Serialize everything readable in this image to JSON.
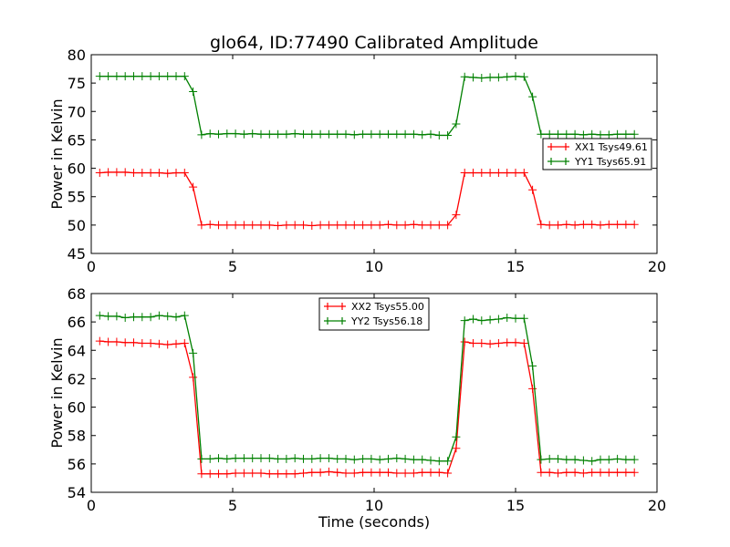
{
  "chart_data": [
    {
      "type": "line",
      "title": "glo64, ID:77490 Calibrated Amplitude",
      "xlabel": "",
      "ylabel": "Power in Kelvin",
      "xlim": [
        0,
        20
      ],
      "ylim": [
        45,
        80
      ],
      "xticks": [
        0,
        5,
        10,
        15,
        20
      ],
      "yticks": [
        45,
        50,
        55,
        60,
        65,
        70,
        75,
        80
      ],
      "legend": "center-right",
      "x_start": 0.3,
      "x_step": 0.3,
      "series": [
        {
          "name": "XX1 Tsys49.61",
          "color": "#ff0000",
          "values": [
            59.2,
            59.3,
            59.3,
            59.3,
            59.2,
            59.2,
            59.2,
            59.2,
            59.1,
            59.2,
            59.2,
            56.7,
            50.0,
            50.1,
            50.0,
            50.0,
            50.0,
            50.0,
            50.0,
            50.0,
            50.0,
            49.9,
            50.0,
            50.0,
            50.0,
            49.9,
            50.0,
            50.0,
            50.0,
            50.0,
            50.0,
            50.0,
            50.0,
            50.0,
            50.1,
            50.0,
            50.0,
            50.1,
            50.0,
            50.0,
            50.0,
            50.0,
            51.8,
            59.2,
            59.2,
            59.2,
            59.2,
            59.2,
            59.2,
            59.2,
            59.2,
            56.2,
            50.1,
            50.0,
            50.0,
            50.1,
            50.0,
            50.1,
            50.1,
            50.0,
            50.1,
            50.1,
            50.1,
            50.1
          ]
        },
        {
          "name": "YY1 Tsys65.91",
          "color": "#008000",
          "values": [
            76.2,
            76.2,
            76.2,
            76.2,
            76.2,
            76.2,
            76.2,
            76.2,
            76.2,
            76.2,
            76.2,
            73.5,
            65.9,
            66.1,
            66.0,
            66.1,
            66.1,
            66.0,
            66.1,
            66.0,
            66.0,
            66.0,
            66.0,
            66.1,
            66.0,
            66.0,
            66.0,
            66.0,
            66.0,
            66.0,
            65.9,
            66.0,
            66.0,
            66.0,
            66.0,
            66.0,
            66.0,
            66.0,
            65.9,
            66.0,
            65.8,
            65.8,
            67.8,
            76.1,
            76.0,
            75.9,
            76.0,
            76.0,
            76.1,
            76.2,
            76.1,
            72.6,
            66.0,
            66.0,
            66.0,
            66.0,
            66.0,
            65.9,
            66.0,
            65.9,
            65.9,
            66.0,
            66.0,
            66.0
          ]
        }
      ]
    },
    {
      "type": "line",
      "title": "",
      "xlabel": "Time (seconds)",
      "ylabel": "Power in Kelvin",
      "xlim": [
        0,
        20
      ],
      "ylim": [
        54,
        68
      ],
      "xticks": [
        0,
        5,
        10,
        15,
        20
      ],
      "yticks": [
        54,
        56,
        58,
        60,
        62,
        64,
        66,
        68
      ],
      "legend": "upper-center",
      "x_start": 0.3,
      "x_step": 0.3,
      "series": [
        {
          "name": "XX2 Tsys55.00",
          "color": "#ff0000",
          "values": [
            64.65,
            64.6,
            64.6,
            64.55,
            64.55,
            64.5,
            64.5,
            64.45,
            64.4,
            64.45,
            64.5,
            62.1,
            55.3,
            55.3,
            55.3,
            55.3,
            55.35,
            55.35,
            55.35,
            55.35,
            55.3,
            55.3,
            55.3,
            55.3,
            55.35,
            55.4,
            55.4,
            55.45,
            55.4,
            55.35,
            55.35,
            55.4,
            55.4,
            55.4,
            55.4,
            55.35,
            55.35,
            55.35,
            55.4,
            55.4,
            55.4,
            55.35,
            57.1,
            64.6,
            64.5,
            64.5,
            64.45,
            64.5,
            64.55,
            64.55,
            64.5,
            61.3,
            55.4,
            55.4,
            55.35,
            55.4,
            55.4,
            55.35,
            55.4,
            55.4,
            55.4,
            55.4,
            55.4,
            55.4
          ]
        },
        {
          "name": "YY2 Tsys56.18",
          "color": "#008000",
          "values": [
            66.45,
            66.4,
            66.4,
            66.3,
            66.35,
            66.35,
            66.35,
            66.45,
            66.4,
            66.35,
            66.45,
            63.8,
            56.35,
            56.35,
            56.4,
            56.35,
            56.4,
            56.4,
            56.4,
            56.4,
            56.4,
            56.35,
            56.35,
            56.4,
            56.35,
            56.35,
            56.4,
            56.4,
            56.35,
            56.35,
            56.3,
            56.35,
            56.35,
            56.3,
            56.35,
            56.4,
            56.35,
            56.3,
            56.3,
            56.25,
            56.2,
            56.2,
            57.9,
            66.1,
            66.2,
            66.1,
            66.15,
            66.2,
            66.3,
            66.25,
            66.25,
            62.9,
            56.3,
            56.35,
            56.35,
            56.3,
            56.3,
            56.25,
            56.2,
            56.3,
            56.3,
            56.35,
            56.3,
            56.3
          ]
        }
      ]
    }
  ]
}
